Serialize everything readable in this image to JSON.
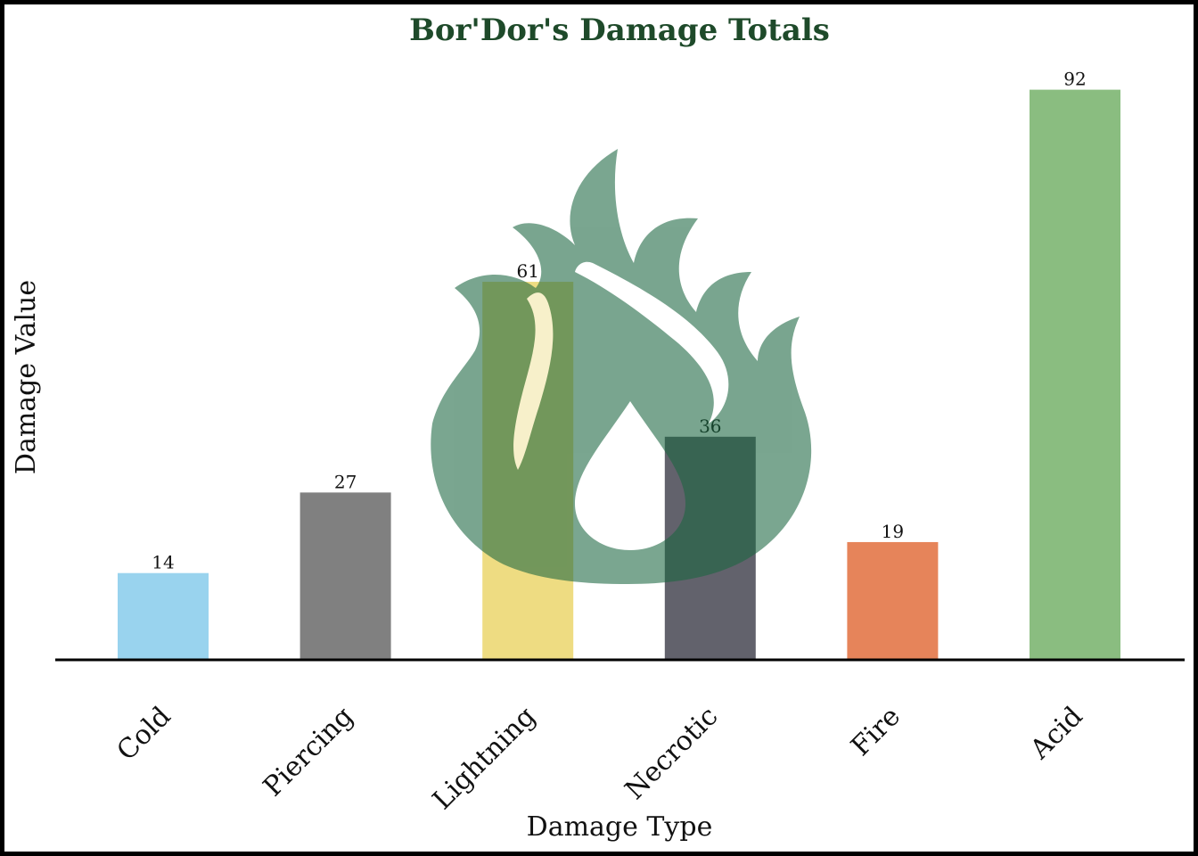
{
  "chart_data": {
    "type": "bar",
    "title": "Bor'Dor's Damage Totals",
    "xlabel": "Damage Type",
    "ylabel": "Damage Value",
    "categories": [
      "Cold",
      "Piercing",
      "Lightning",
      "Necrotic",
      "Fire",
      "Acid"
    ],
    "values": [
      14,
      27,
      61,
      36,
      19,
      92
    ],
    "colors": [
      "#99d3ee",
      "#808080",
      "#eedc82",
      "#62626c",
      "#e6845a",
      "#8abd80"
    ],
    "ylim": [
      0,
      100
    ],
    "grid": false,
    "data_labels": true
  },
  "style": {
    "title_color": "#1e4a2a",
    "text_color": "#111111",
    "axis_color": "#000000",
    "watermark_color": "#1a6640",
    "watermark_icon": "fire-icon"
  }
}
